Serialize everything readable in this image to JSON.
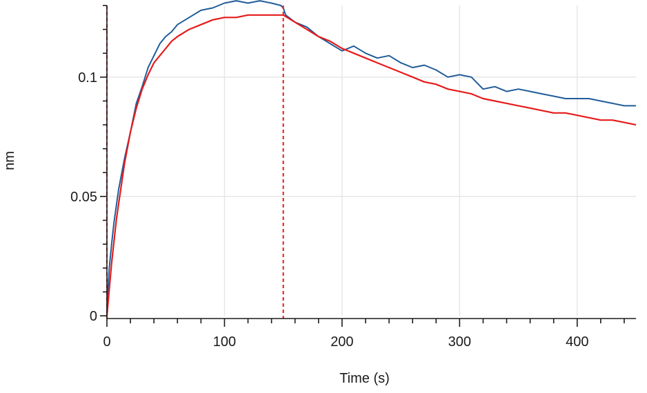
{
  "chart_data": {
    "type": "line",
    "xlabel": "Time (s)",
    "ylabel": "nm",
    "xlim": [
      0,
      450
    ],
    "ylim": [
      0,
      0.13
    ],
    "x_ticks": [
      0,
      100,
      200,
      300,
      400
    ],
    "y_ticks": [
      0,
      0.05,
      0.1
    ],
    "x_tick_labels": [
      "0",
      "100",
      "200",
      "300",
      "400"
    ],
    "y_tick_labels": [
      "0",
      "0.05",
      "0.1"
    ],
    "grid": true,
    "legend": "none",
    "phase_markers": [
      0,
      150
    ],
    "colors": {
      "measured": "#1f5c99",
      "fit": "#e61a1a",
      "marker": "#e61a1a"
    },
    "series": [
      {
        "role": "measured",
        "x": [
          0,
          2,
          4,
          6,
          8,
          10,
          15,
          20,
          25,
          30,
          35,
          40,
          45,
          50,
          55,
          60,
          70,
          80,
          90,
          100,
          110,
          120,
          130,
          140,
          148,
          150,
          152,
          160,
          170,
          180,
          190,
          200,
          210,
          220,
          230,
          240,
          250,
          260,
          270,
          280,
          290,
          300,
          310,
          320,
          330,
          340,
          350,
          360,
          370,
          380,
          390,
          400,
          410,
          420,
          430,
          440,
          450
        ],
        "y": [
          0.003,
          0.02,
          0.03,
          0.039,
          0.046,
          0.053,
          0.066,
          0.077,
          0.089,
          0.096,
          0.104,
          0.109,
          0.114,
          0.117,
          0.119,
          0.122,
          0.125,
          0.128,
          0.129,
          0.131,
          0.132,
          0.131,
          0.132,
          0.131,
          0.13,
          0.129,
          0.126,
          0.123,
          0.121,
          0.117,
          0.114,
          0.111,
          0.113,
          0.11,
          0.108,
          0.109,
          0.106,
          0.104,
          0.105,
          0.103,
          0.1,
          0.101,
          0.1,
          0.095,
          0.096,
          0.094,
          0.095,
          0.094,
          0.093,
          0.092,
          0.091,
          0.091,
          0.091,
          0.09,
          0.089,
          0.088,
          0.088
        ]
      },
      {
        "role": "fit",
        "x": [
          0,
          2,
          4,
          6,
          8,
          10,
          15,
          20,
          25,
          30,
          35,
          40,
          45,
          50,
          55,
          60,
          70,
          80,
          90,
          100,
          110,
          120,
          130,
          140,
          150,
          160,
          170,
          180,
          190,
          200,
          210,
          220,
          230,
          240,
          250,
          260,
          270,
          280,
          290,
          300,
          310,
          320,
          330,
          340,
          350,
          360,
          370,
          380,
          390,
          400,
          410,
          420,
          430,
          440,
          450
        ],
        "y": [
          0,
          0.011,
          0.022,
          0.031,
          0.04,
          0.047,
          0.064,
          0.077,
          0.087,
          0.095,
          0.101,
          0.106,
          0.109,
          0.112,
          0.115,
          0.117,
          0.12,
          0.122,
          0.124,
          0.125,
          0.125,
          0.126,
          0.126,
          0.126,
          0.126,
          0.123,
          0.12,
          0.117,
          0.115,
          0.112,
          0.11,
          0.108,
          0.106,
          0.104,
          0.102,
          0.1,
          0.098,
          0.097,
          0.095,
          0.094,
          0.093,
          0.091,
          0.09,
          0.089,
          0.088,
          0.087,
          0.086,
          0.085,
          0.085,
          0.084,
          0.083,
          0.082,
          0.082,
          0.081,
          0.08
        ]
      }
    ]
  }
}
